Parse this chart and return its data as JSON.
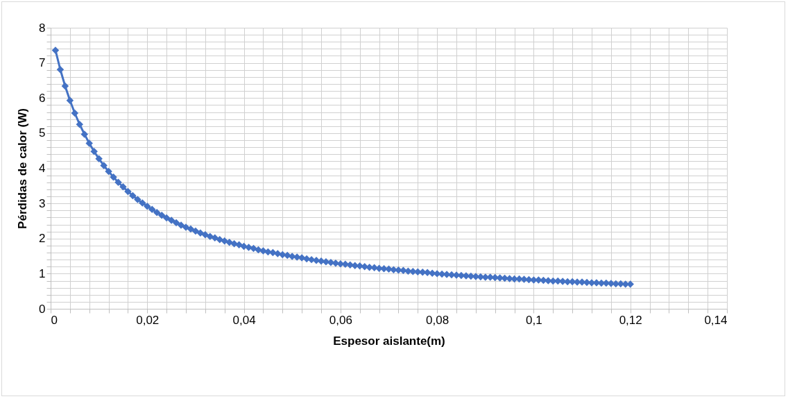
{
  "chart_data": {
    "type": "line",
    "xlabel": "Espesor aislante(m)",
    "ylabel": "Pérdidas de calor (W)",
    "x": [
      0.001,
      0.002,
      0.003,
      0.004,
      0.005,
      0.006,
      0.007,
      0.008,
      0.009,
      0.01,
      0.011,
      0.012,
      0.013,
      0.014,
      0.015,
      0.016,
      0.017,
      0.018,
      0.019,
      0.02,
      0.021,
      0.022,
      0.023,
      0.024,
      0.025,
      0.026,
      0.027,
      0.028,
      0.029,
      0.03,
      0.031,
      0.032,
      0.033,
      0.034,
      0.035,
      0.036,
      0.037,
      0.038,
      0.039,
      0.04,
      0.041,
      0.042,
      0.043,
      0.044,
      0.045,
      0.046,
      0.047,
      0.048,
      0.049,
      0.05,
      0.051,
      0.052,
      0.053,
      0.054,
      0.055,
      0.056,
      0.057,
      0.058,
      0.059,
      0.06,
      0.061,
      0.062,
      0.063,
      0.064,
      0.065,
      0.066,
      0.067,
      0.068,
      0.069,
      0.07,
      0.071,
      0.072,
      0.073,
      0.074,
      0.075,
      0.076,
      0.077,
      0.078,
      0.079,
      0.08,
      0.081,
      0.082,
      0.083,
      0.084,
      0.085,
      0.086,
      0.087,
      0.088,
      0.089,
      0.09,
      0.091,
      0.092,
      0.093,
      0.094,
      0.095,
      0.096,
      0.097,
      0.098,
      0.099,
      0.1,
      0.101,
      0.102,
      0.103,
      0.104,
      0.105,
      0.106,
      0.107,
      0.108,
      0.109,
      0.11,
      0.111,
      0.112,
      0.113,
      0.114,
      0.115,
      0.116,
      0.117,
      0.118,
      0.119,
      0.12
    ],
    "series": [
      {
        "color": "#4472c4",
        "values": [
          7.36,
          6.81,
          6.34,
          5.93,
          5.57,
          5.25,
          4.97,
          4.71,
          4.48,
          4.27,
          4.08,
          3.91,
          3.75,
          3.6,
          3.47,
          3.34,
          3.22,
          3.11,
          3.01,
          2.92,
          2.83,
          2.74,
          2.66,
          2.59,
          2.52,
          2.45,
          2.38,
          2.32,
          2.27,
          2.21,
          2.16,
          2.11,
          2.06,
          2.02,
          1.97,
          1.93,
          1.89,
          1.85,
          1.82,
          1.78,
          1.75,
          1.72,
          1.68,
          1.65,
          1.62,
          1.6,
          1.57,
          1.54,
          1.52,
          1.49,
          1.47,
          1.45,
          1.42,
          1.4,
          1.38,
          1.36,
          1.34,
          1.32,
          1.3,
          1.28,
          1.27,
          1.25,
          1.23,
          1.22,
          1.2,
          1.18,
          1.17,
          1.15,
          1.14,
          1.13,
          1.11,
          1.1,
          1.09,
          1.07,
          1.06,
          1.05,
          1.04,
          1.03,
          1.01,
          1.0,
          0.99,
          0.98,
          0.97,
          0.96,
          0.95,
          0.94,
          0.93,
          0.92,
          0.91,
          0.9,
          0.9,
          0.89,
          0.88,
          0.87,
          0.86,
          0.85,
          0.85,
          0.84,
          0.83,
          0.82,
          0.82,
          0.81,
          0.8,
          0.79,
          0.79,
          0.78,
          0.77,
          0.77,
          0.76,
          0.76,
          0.75,
          0.74,
          0.74,
          0.73,
          0.73,
          0.72,
          0.71,
          0.71,
          0.7,
          0.7
        ]
      }
    ],
    "xlim": [
      0,
      0.14
    ],
    "xticks": [
      0,
      {
        "value": 0.004,
        "label": null
      },
      {
        "value": 0.008,
        "label": null
      },
      {
        "value": 0.012,
        "label": null
      },
      {
        "value": 0.016,
        "label": null
      },
      {
        "value": 0.02,
        "label": "0,02"
      },
      {
        "value": 0.024,
        "label": null
      },
      {
        "value": 0.028,
        "label": null
      },
      {
        "value": 0.032,
        "label": null
      },
      {
        "value": 0.036,
        "label": null
      },
      {
        "value": 0.04,
        "label": "0,04"
      },
      {
        "value": 0.044,
        "label": null
      },
      {
        "value": 0.048,
        "label": null
      },
      {
        "value": 0.052,
        "label": null
      },
      {
        "value": 0.056,
        "label": null
      },
      {
        "value": 0.06,
        "label": "0,06"
      },
      {
        "value": 0.064,
        "label": null
      },
      {
        "value": 0.068,
        "label": null
      },
      {
        "value": 0.072,
        "label": null
      },
      {
        "value": 0.076,
        "label": null
      },
      {
        "value": 0.08,
        "label": "0,08"
      },
      {
        "value": 0.084,
        "label": null
      },
      {
        "value": 0.088,
        "label": null
      },
      {
        "value": 0.092,
        "label": null
      },
      {
        "value": 0.096,
        "label": null
      },
      {
        "value": 0.1,
        "label": "0,1"
      },
      {
        "value": 0.104,
        "label": null
      },
      {
        "value": 0.108,
        "label": null
      },
      {
        "value": 0.112,
        "label": null
      },
      {
        "value": 0.116,
        "label": null
      },
      {
        "value": 0.12,
        "label": "0,12"
      },
      {
        "value": 0.124,
        "label": null
      },
      {
        "value": 0.128,
        "label": null
      },
      {
        "value": 0.132,
        "label": null
      },
      {
        "value": 0.136,
        "label": null
      },
      {
        "value": 0.14,
        "label": "0,14"
      }
    ],
    "ylim": [
      0,
      8
    ],
    "yticks": [
      0,
      {
        "value": 0.2,
        "label": null
      },
      {
        "value": 0.4,
        "label": null
      },
      {
        "value": 0.6,
        "label": null
      },
      {
        "value": 0.8,
        "label": null
      },
      1,
      {
        "value": 1.2,
        "label": null
      },
      {
        "value": 1.4,
        "label": null
      },
      {
        "value": 1.6,
        "label": null
      },
      {
        "value": 1.8,
        "label": null
      },
      2,
      {
        "value": 2.2,
        "label": null
      },
      {
        "value": 2.4,
        "label": null
      },
      {
        "value": 2.6,
        "label": null
      },
      {
        "value": 2.8,
        "label": null
      },
      3,
      {
        "value": 3.2,
        "label": null
      },
      {
        "value": 3.4,
        "label": null
      },
      {
        "value": 3.6,
        "label": null
      },
      {
        "value": 3.8,
        "label": null
      },
      4,
      {
        "value": 4.2,
        "label": null
      },
      {
        "value": 4.4,
        "label": null
      },
      {
        "value": 4.6,
        "label": null
      },
      {
        "value": 4.8,
        "label": null
      },
      5,
      {
        "value": 5.2,
        "label": null
      },
      {
        "value": 5.4,
        "label": null
      },
      {
        "value": 5.6,
        "label": null
      },
      {
        "value": 5.8,
        "label": null
      },
      6,
      {
        "value": 6.2,
        "label": null
      },
      {
        "value": 6.4,
        "label": null
      },
      {
        "value": 6.6,
        "label": null
      },
      {
        "value": 6.8,
        "label": null
      },
      7,
      {
        "value": 7.2,
        "label": null
      },
      {
        "value": 7.4,
        "label": null
      },
      {
        "value": 7.6,
        "label": null
      },
      {
        "value": 7.8,
        "label": null
      },
      8
    ],
    "grid": true,
    "marker": "diamond",
    "line_style": "solid"
  }
}
